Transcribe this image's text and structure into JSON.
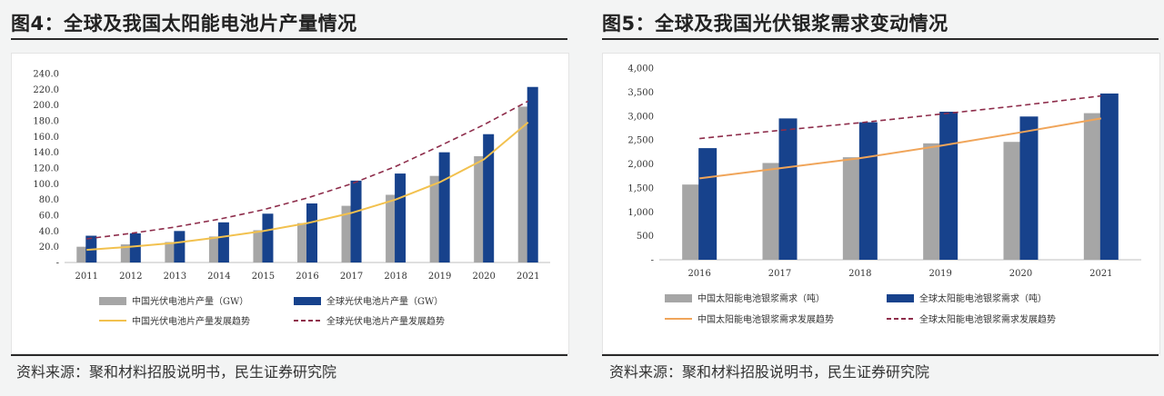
{
  "figures": [
    {
      "title": "图4：全球及我国太阳能电池片产量情况",
      "source": "资料来源：聚和材料招股说明书，民生证券研究院"
    },
    {
      "title": "图5：全球及我国光伏银浆需求变动情况",
      "source": "资料来源：聚和材料招股说明书，民生证券研究院"
    }
  ],
  "chart_data": [
    {
      "type": "bar",
      "categories": [
        "2011",
        "2012",
        "2013",
        "2014",
        "2015",
        "2016",
        "2017",
        "2018",
        "2019",
        "2020",
        "2021"
      ],
      "ylim": [
        0,
        240
      ],
      "yticks": [
        "-",
        "20.0",
        "40.0",
        "60.0",
        "80.0",
        "100.0",
        "120.0",
        "140.0",
        "160.0",
        "180.0",
        "200.0",
        "220.0",
        "240.0"
      ],
      "series": [
        {
          "name": "中国光伏电池片产量（GW）",
          "kind": "bar",
          "color": "#a6a6a6",
          "values": [
            20,
            23,
            26,
            33,
            41,
            50,
            72,
            86,
            110,
            135,
            198
          ]
        },
        {
          "name": "全球光伏电池片产量（GW）",
          "kind": "bar",
          "color": "#17428c",
          "values": [
            34,
            37,
            40,
            51,
            62,
            75,
            104,
            113,
            140,
            163,
            223
          ]
        },
        {
          "name": "中国光伏电池片产量发展趋势",
          "kind": "trend",
          "color": "#f2c14e",
          "values": [
            16,
            20,
            25,
            32,
            40,
            50,
            63,
            80,
            102,
            131,
            178
          ]
        },
        {
          "name": "全球光伏电池片产量发展趋势",
          "kind": "trend-dashed",
          "color": "#8e2d4b",
          "values": [
            30,
            37,
            45,
            55,
            67,
            82,
            100,
            122,
            148,
            175,
            205
          ]
        }
      ]
    },
    {
      "type": "bar",
      "categories": [
        "2016",
        "2017",
        "2018",
        "2019",
        "2020",
        "2021"
      ],
      "ylim": [
        0,
        4000
      ],
      "yticks": [
        "-",
        "500",
        "1,000",
        "1,500",
        "2,000",
        "2,500",
        "3,000",
        "3,500",
        "4,000"
      ],
      "series": [
        {
          "name": "中国太阳能电池银浆需求（吨）",
          "kind": "bar",
          "color": "#a6a6a6",
          "values": [
            1570,
            2020,
            2140,
            2430,
            2460,
            3060
          ]
        },
        {
          "name": "全球太阳能电池银浆需求（吨）",
          "kind": "bar",
          "color": "#17428c",
          "values": [
            2330,
            2950,
            2870,
            3090,
            2990,
            3470
          ]
        },
        {
          "name": "中国太阳能电池银浆需求发展趋势",
          "kind": "trend",
          "color": "#f0a55a",
          "values": [
            1700,
            1910,
            2120,
            2380,
            2660,
            2950
          ]
        },
        {
          "name": "全球太阳能电池银浆需求发展趋势",
          "kind": "trend-dashed",
          "color": "#8e2d4b",
          "values": [
            2530,
            2700,
            2860,
            3040,
            3220,
            3420
          ]
        }
      ]
    }
  ]
}
